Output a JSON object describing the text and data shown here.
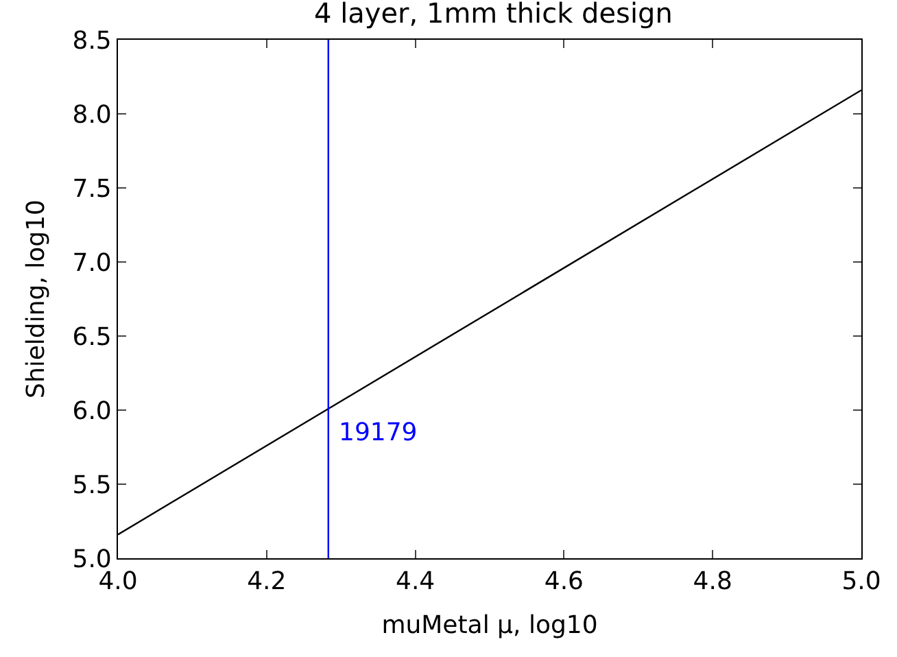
{
  "chart_data": {
    "type": "line",
    "title": "4 layer, 1mm thick design",
    "xlabel": "muMetal μ, log10",
    "ylabel": "Shielding, log10",
    "x": [
      4.0,
      5.0
    ],
    "series": [
      {
        "color": "#000000",
        "values": [
          5.16,
          8.16
        ]
      }
    ],
    "xlim": [
      4.0,
      5.0
    ],
    "ylim": [
      5.0,
      8.5
    ],
    "xticks": [
      {
        "value": 4.0,
        "label": "4.0"
      },
      {
        "value": 4.2,
        "label": "4.2"
      },
      {
        "value": 4.4,
        "label": "4.4"
      },
      {
        "value": 4.6,
        "label": "4.6"
      },
      {
        "value": 4.8,
        "label": "4.8"
      },
      {
        "value": 5.0,
        "label": "5.0"
      }
    ],
    "yticks": [
      {
        "value": 5.0,
        "label": "5.0"
      },
      {
        "value": 5.5,
        "label": "5.5"
      },
      {
        "value": 6.0,
        "label": "6.0"
      },
      {
        "value": 6.5,
        "label": "6.5"
      },
      {
        "value": 7.0,
        "label": "7.0"
      },
      {
        "value": 7.5,
        "label": "7.5"
      },
      {
        "value": 8.0,
        "label": "8.0"
      },
      {
        "value": 8.5,
        "label": "8.5"
      }
    ],
    "ref_lines": [
      {
        "axis": "x",
        "value": 4.283,
        "color": "#0000ff"
      }
    ],
    "annotations": [
      {
        "text": "19179",
        "x": 4.283,
        "y": 5.85
      }
    ],
    "legend": false
  }
}
